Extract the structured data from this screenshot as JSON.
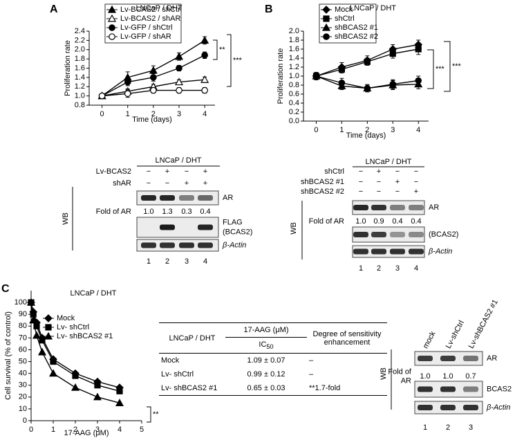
{
  "panels": [
    "A",
    "B",
    "C"
  ],
  "chart_data": [
    {
      "type": "line",
      "title": "LNCaP / DHT",
      "xlabel": "Time (days)",
      "ylabel": "Proliferation rate",
      "x": [
        0,
        1,
        2,
        3,
        4
      ],
      "xlim": [
        -0.5,
        4.4
      ],
      "xticks": [
        0,
        1,
        2,
        3,
        4
      ],
      "ylim": [
        0.8,
        2.4
      ],
      "yticks": [
        0.8,
        {
          "value": 1.0,
          "label": "1.0"
        },
        1.2,
        1.4,
        1.6,
        1.8,
        {
          "value": 2.0,
          "label": "2.0"
        },
        2.2,
        2.4
      ],
      "legend": "upper left",
      "grid": false,
      "series": [
        {
          "name": "Lv-BCAS2 / shCtrl",
          "color": "#000000",
          "marker": "triangle",
          "values": [
            1.0,
            1.4,
            1.55,
            1.85,
            2.2
          ],
          "errors": [
            0.05,
            0.12,
            0.1,
            0.08,
            0.08
          ]
        },
        {
          "name": "Lv-BCAS2 / shAR",
          "color": "#000000",
          "marker": "triangle-open",
          "values": [
            1.0,
            1.1,
            1.2,
            1.3,
            1.35
          ],
          "errors": [
            0.05,
            0.05,
            0.05,
            0.05,
            0.06
          ]
        },
        {
          "name": "Lv-GFP / shCtrl",
          "color": "#000000",
          "marker": "circle",
          "values": [
            1.0,
            1.3,
            1.4,
            1.6,
            1.88
          ],
          "errors": [
            0.05,
            0.08,
            0.08,
            0.06,
            0.07
          ]
        },
        {
          "name": "Lv-GFP / shAR",
          "color": "#000000",
          "marker": "circle-open",
          "values": [
            1.0,
            1.05,
            1.12,
            1.12,
            1.12
          ],
          "errors": [
            0.05,
            0.08,
            0.06,
            0.06,
            0.06
          ]
        }
      ],
      "annotations": [
        "**",
        "***"
      ]
    },
    {
      "type": "line",
      "title": "LNCaP / DHT",
      "xlabel": "Time (days)",
      "ylabel": "Proliferation rate",
      "x": [
        0,
        1,
        2,
        3,
        4
      ],
      "xlim": [
        -0.5,
        4.4
      ],
      "xticks": [
        0,
        1,
        2,
        3,
        4
      ],
      "ylim": [
        0,
        2
      ],
      "yticks": [
        {
          "value": 0,
          "label": "0.0"
        },
        0.2,
        0.4,
        0.6,
        0.8,
        {
          "value": 1.0,
          "label": "1.0"
        },
        1.2,
        1.4,
        1.6,
        1.8,
        {
          "value": 2,
          "label": "2.0"
        }
      ],
      "legend": "upper left",
      "grid": false,
      "series": [
        {
          "name": "Mock",
          "color": "#000000",
          "marker": "diamond",
          "values": [
            1.0,
            1.2,
            1.35,
            1.6,
            1.7
          ],
          "errors": [
            0.08,
            0.1,
            0.1,
            0.1,
            0.1
          ]
        },
        {
          "name": "shCtrl",
          "color": "#000000",
          "marker": "square",
          "values": [
            1.0,
            1.15,
            1.32,
            1.5,
            1.6
          ],
          "errors": [
            0.08,
            0.08,
            0.08,
            0.1,
            0.12
          ]
        },
        {
          "name": "shBCAS2 #1",
          "color": "#000000",
          "marker": "triangle",
          "values": [
            1.0,
            0.78,
            0.73,
            0.8,
            0.82
          ],
          "errors": [
            0.08,
            0.08,
            0.08,
            0.1,
            0.1
          ]
        },
        {
          "name": "shBCAS2 #2",
          "color": "#000000",
          "marker": "circle",
          "values": [
            1.0,
            0.85,
            0.73,
            0.82,
            0.9
          ],
          "errors": [
            0.08,
            0.1,
            0.08,
            0.1,
            0.1
          ]
        }
      ],
      "annotations": [
        "***",
        "***"
      ]
    },
    {
      "type": "line",
      "title": "LNCaP / DHT",
      "xlabel": "17-AAG (μM)",
      "ylabel": "Cell survival (% of control)",
      "x": [
        0,
        0.1,
        0.25,
        0.5,
        1,
        2,
        3,
        4
      ],
      "xlim": [
        0,
        5
      ],
      "xticks": [
        0,
        1,
        2,
        3,
        4,
        5
      ],
      "ylim": [
        0,
        110
      ],
      "yticks": [
        0,
        10,
        20,
        30,
        40,
        50,
        60,
        70,
        80,
        90,
        100
      ],
      "legend": "upper left",
      "grid": false,
      "series": [
        {
          "name": "Mock",
          "color": "#000000",
          "marker": "diamond",
          "values": [
            100,
            92,
            83,
            70,
            52,
            40,
            33,
            28
          ]
        },
        {
          "name": "Lv- shCtrl",
          "color": "#000000",
          "marker": "square",
          "values": [
            100,
            90,
            80,
            68,
            50,
            38,
            30,
            25
          ]
        },
        {
          "name": "Lv- shBCAS2 #1",
          "color": "#000000",
          "marker": "triangle",
          "values": [
            100,
            85,
            72,
            58,
            40,
            28,
            20,
            15
          ]
        }
      ],
      "annotations": [
        "**"
      ]
    }
  ],
  "blots": [
    {
      "title": "LNCaP / DHT",
      "wb": "WB",
      "conditions": [
        {
          "name": "Lv-BCAS2",
          "signs": [
            "−",
            "+",
            "−",
            "+"
          ]
        },
        {
          "name": "shAR",
          "signs": [
            "−",
            "−",
            "+",
            "+"
          ]
        }
      ],
      "fold_label": [
        "Fold of AR"
      ],
      "fold": [
        "1.0",
        "1.3",
        "0.3",
        "0.4"
      ],
      "bands": [
        [
          "AR"
        ],
        [
          "FLAG",
          "(BCAS2)"
        ],
        [
          "β-Actin"
        ]
      ],
      "lanes": [
        "1",
        "2",
        "3",
        "4"
      ]
    },
    {
      "title": "LNCaP / DHT",
      "wb": "WB",
      "conditions": [
        {
          "name": "shCtrl",
          "signs": [
            "−",
            "+",
            "−",
            "−"
          ]
        },
        {
          "name": "shBCAS2 #1",
          "signs": [
            "−",
            "−",
            "+",
            "−"
          ]
        },
        {
          "name": "shBCAS2 #2",
          "signs": [
            "−",
            "−",
            "−",
            "+"
          ]
        }
      ],
      "fold_label": [
        "Fold of AR"
      ],
      "fold": [
        "1.0",
        "0.9",
        "0.4",
        "0.4"
      ],
      "bands": [
        [
          "AR"
        ],
        [
          "(BCAS2)"
        ],
        [
          "β-Actin"
        ]
      ],
      "lanes": [
        "1",
        "2",
        "3",
        "4"
      ]
    },
    {
      "wb": "WB",
      "lane_labels": [
        "mock",
        "Lv-shCtrl",
        "Lv-shBCAS2 #1"
      ],
      "fold_label": [
        "Fold of",
        "AR"
      ],
      "fold": [
        "1.0",
        "1.0",
        "0.7"
      ],
      "bands": [
        [
          "AR"
        ],
        [
          "BCAS2"
        ],
        [
          "β-Actin"
        ]
      ],
      "lanes": [
        "1",
        "2",
        "3"
      ]
    }
  ],
  "table": {
    "header": [
      "LNCaP / DHT",
      "17-AAG (μM)",
      "Degree of sensitivity enhancement"
    ],
    "subheader": {
      "text": "IC",
      "sub": "50"
    },
    "rows": [
      [
        "Mock",
        "1.09 ± 0.07",
        "–"
      ],
      [
        "Lv- shCtrl",
        "0.99 ± 0.12",
        "–"
      ],
      [
        "Lv- shBCAS2 #1",
        "0.65 ± 0.03",
        "**1.7-fold"
      ]
    ]
  }
}
